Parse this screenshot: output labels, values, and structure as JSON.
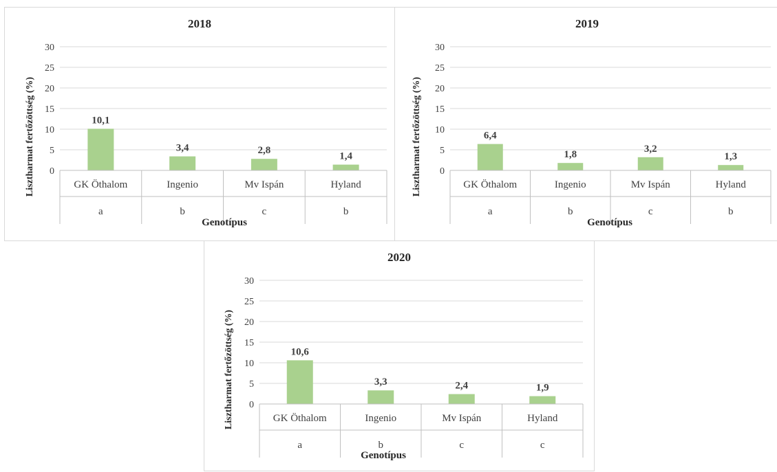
{
  "colors": {
    "bar": "#a9d18e",
    "grid": "#d9d9d9",
    "axis": "#bfbfbf",
    "text": "#404040"
  },
  "chart_data": [
    {
      "type": "bar",
      "title": "2018",
      "categories": [
        "GK Öthalom",
        "Ingenio",
        "Mv Ispán",
        "Hyland"
      ],
      "group_letters": [
        "a",
        "b",
        "c",
        "b"
      ],
      "values": [
        10.1,
        3.4,
        2.8,
        1.4
      ],
      "data_labels": [
        "10,1",
        "3,4",
        "2,8",
        "1,4"
      ],
      "xlabel": "Genotípus",
      "ylabel": "Lisztharmat fertőzöttség (%)",
      "ylim": [
        0,
        30
      ],
      "yticks": [
        0,
        5,
        10,
        15,
        20,
        25,
        30
      ],
      "grid": true
    },
    {
      "type": "bar",
      "title": "2019",
      "categories": [
        "GK Öthalom",
        "Ingenio",
        "Mv Ispán",
        "Hyland"
      ],
      "group_letters": [
        "a",
        "b",
        "c",
        "b"
      ],
      "values": [
        6.4,
        1.8,
        3.2,
        1.3
      ],
      "data_labels": [
        "6,4",
        "1,8",
        "3,2",
        "1,3"
      ],
      "xlabel": "Genotípus",
      "ylabel": "Lisztharmat fertőzöttség (%)",
      "ylim": [
        0,
        30
      ],
      "yticks": [
        0,
        5,
        10,
        15,
        20,
        25,
        30
      ],
      "grid": true
    },
    {
      "type": "bar",
      "title": "2020",
      "categories": [
        "GK Öthalom",
        "Ingenio",
        "Mv Ispán",
        "Hyland"
      ],
      "group_letters": [
        "a",
        "b",
        "c",
        "c"
      ],
      "values": [
        10.6,
        3.3,
        2.4,
        1.9
      ],
      "data_labels": [
        "10,6",
        "3,3",
        "2,4",
        "1,9"
      ],
      "xlabel": "Genotípus",
      "ylabel": "Lisztharmat fertőzöttség (%)",
      "ylim": [
        0,
        30
      ],
      "yticks": [
        0,
        5,
        10,
        15,
        20,
        25,
        30
      ],
      "grid": true
    }
  ]
}
